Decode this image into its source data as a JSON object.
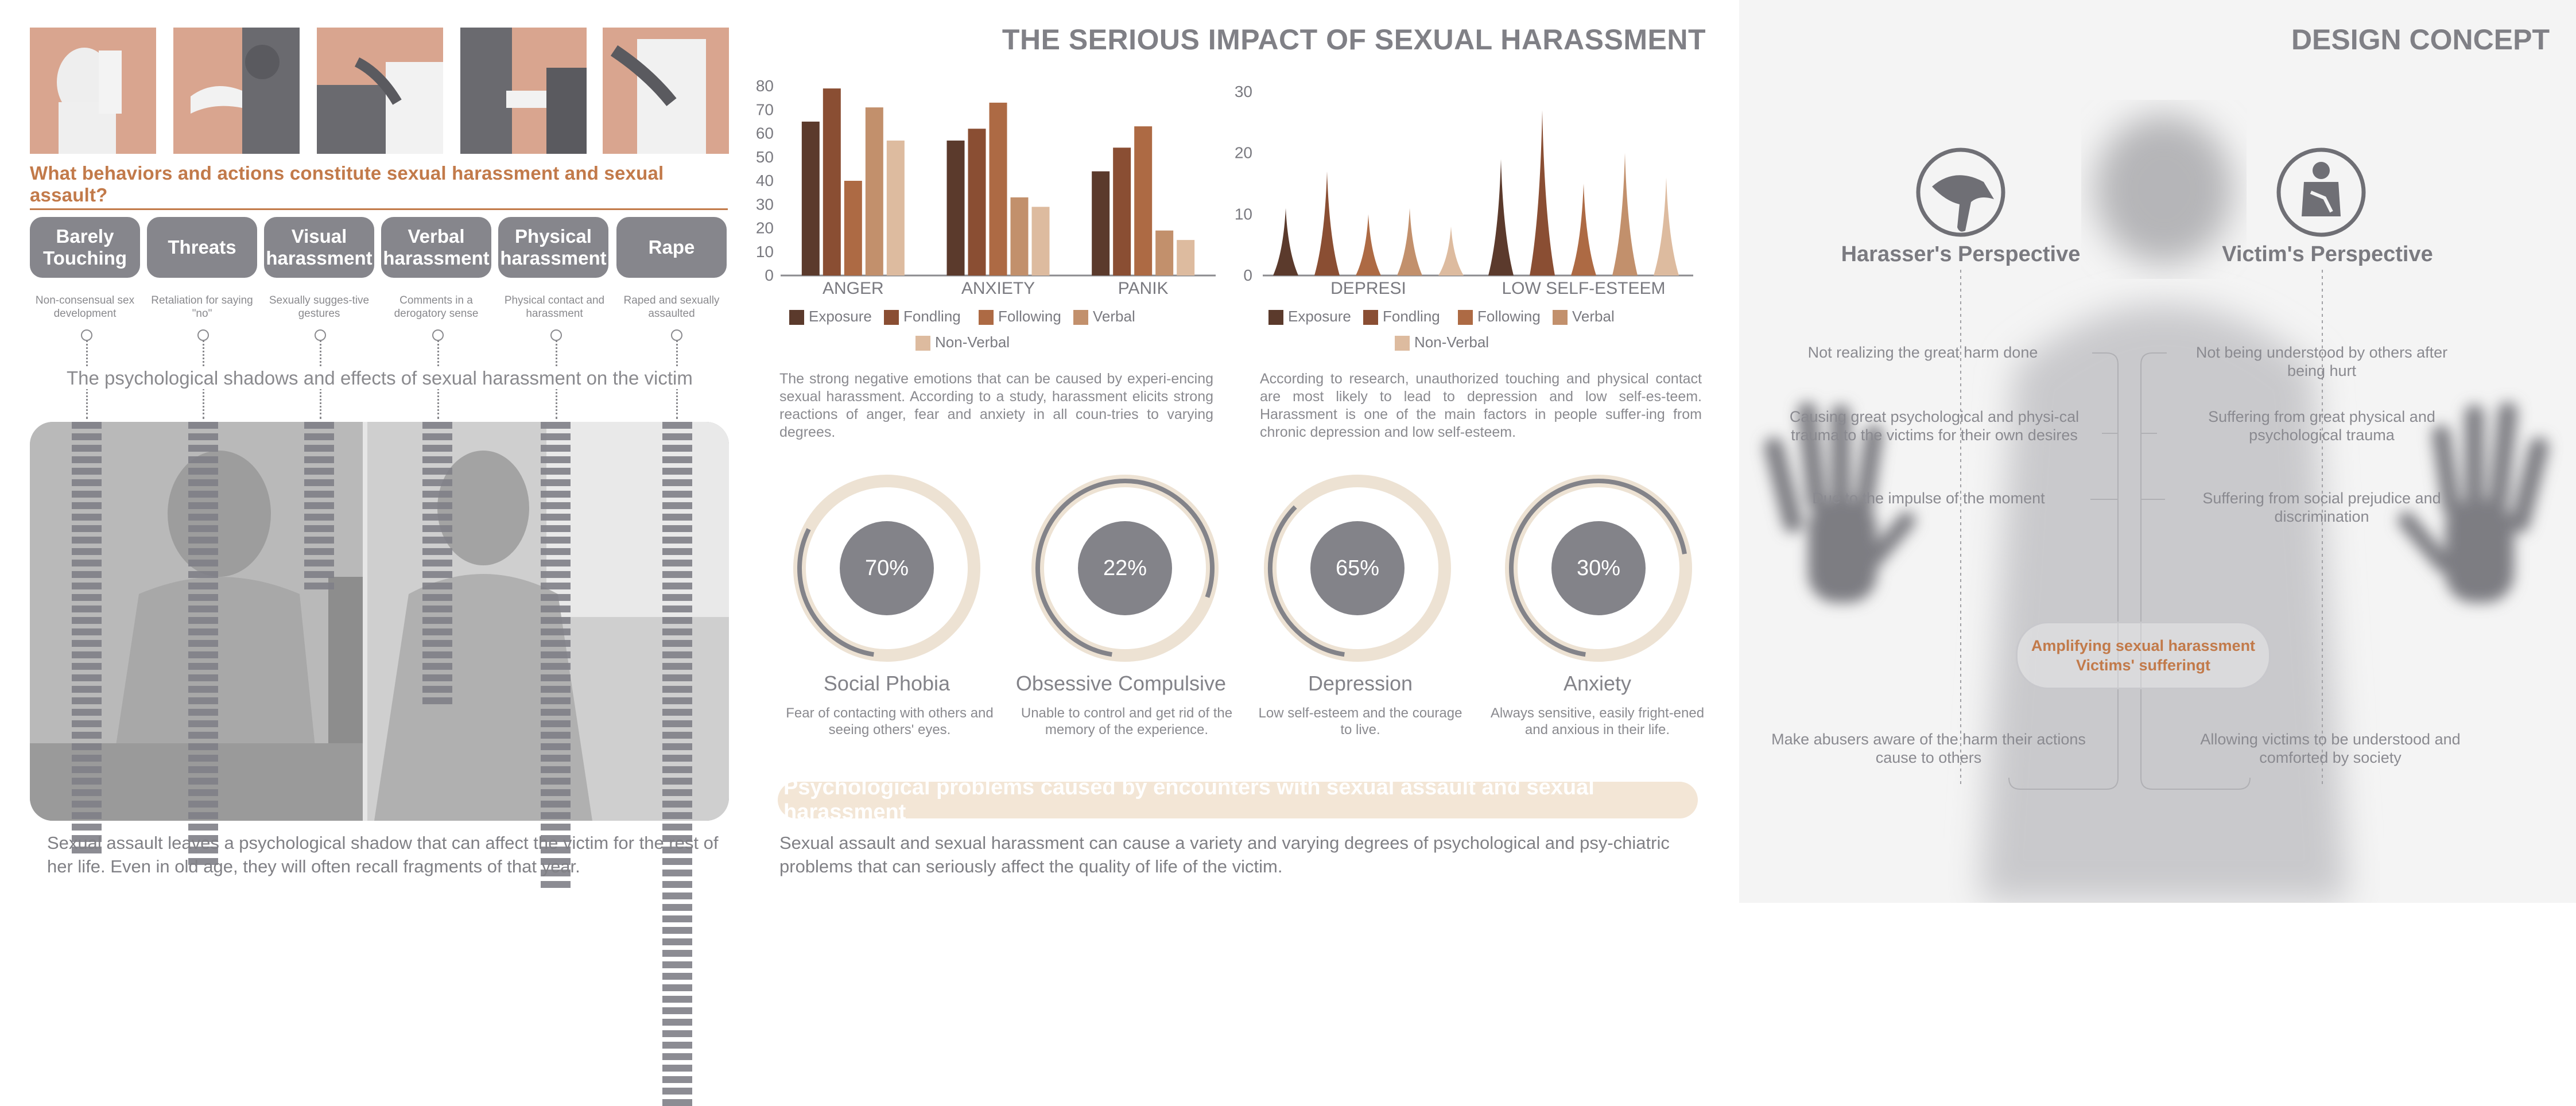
{
  "left": {
    "question": "What behaviors and actions constitute sexual harassment and sexual assault?",
    "categories": [
      {
        "label": "Barely Touching",
        "desc": "Non-consensual sex development"
      },
      {
        "label": "Threats",
        "desc": "Retaliation for saying \"no\""
      },
      {
        "label": "Visual harassment",
        "desc": "Sexually sugges-tive gestures"
      },
      {
        "label": "Verbal harassment",
        "desc": "Comments in a derogatory sense"
      },
      {
        "label": "Physical harassment",
        "desc": "Physical contact and harassment"
      },
      {
        "label": "Rape",
        "desc": "Raped and sexually assaulted"
      }
    ],
    "shadow_title": "The psychological shadows and effects of sexual harassment on the victim",
    "caption": "Sexual assault leaves a psychological shadow that can affect the victim for the rest of her life. Even in old age, they will often recall fragments of that year."
  },
  "middle": {
    "title": "THE SERIOUS IMPACT OF SEXUAL HARASSMENT",
    "para1": "The strong negative emotions that can be caused by experi-encing sexual harassment. According to a study, harassment elicits strong reactions of anger, fear and anxiety in all coun-tries to varying degrees.",
    "para2": "According to research, unauthorized touching and physical contact are most likely to lead to depression and low self-es-teem. Harassment is one of the main factors in people suffer-ing from chronic depression and low self-esteem.",
    "rings": [
      {
        "value": "70%",
        "label": "Social Phobia",
        "desc": "Fear of contacting with others and seeing others' eyes."
      },
      {
        "value": "22%",
        "label": "Obsessive Compulsive",
        "desc": "Unable to control and get rid of the memory of the experience."
      },
      {
        "value": "65%",
        "label": "Depression",
        "desc": "Low self-esteem and the courage to live."
      },
      {
        "value": "30%",
        "label": "Anxiety",
        "desc": "Always sensitive, easily fright-ened and anxious in their life."
      }
    ],
    "banner": "Psychological problems caused by encounters with sexual assault and sexual harassment",
    "caption": "Sexual assault and sexual harassment can cause a variety and varying degrees of psychological and psy-chiatric problems that can seriously affect the quality of life of the victim."
  },
  "colors": {
    "exposure": "#5b3a2c",
    "fondling": "#8a4e33",
    "following": "#ad6a44",
    "verbal": "#c2906c",
    "non_verbal": "#ddbb9f",
    "ring_track": "#ede2d3",
    "ring_line": "#838389"
  },
  "chart_data": [
    {
      "type": "bar",
      "categories": [
        "ANGER",
        "ANXIETY",
        "PANIK"
      ],
      "ylim": [
        0,
        80
      ],
      "yticks": [
        0,
        10,
        20,
        30,
        40,
        50,
        60,
        70,
        80
      ],
      "series": [
        {
          "name": "Exposure",
          "values": [
            65,
            57,
            44
          ]
        },
        {
          "name": "Fondling",
          "values": [
            79,
            62,
            54
          ]
        },
        {
          "name": "Following",
          "values": [
            40,
            73,
            63
          ]
        },
        {
          "name": "Verbal",
          "values": [
            71,
            33,
            19
          ]
        },
        {
          "name": "Non-Verbal",
          "values": [
            57,
            29,
            15
          ]
        }
      ]
    },
    {
      "type": "area",
      "categories": [
        "DEPRESI",
        "LOW SELF-ESTEEM"
      ],
      "ylim": [
        0,
        30
      ],
      "yticks": [
        0,
        10,
        20,
        30
      ],
      "series": [
        {
          "name": "Exposure",
          "values": [
            11,
            19
          ]
        },
        {
          "name": "Fondling",
          "values": [
            17,
            27
          ]
        },
        {
          "name": "Following",
          "values": [
            10,
            15
          ]
        },
        {
          "name": "Verbal",
          "values": [
            11,
            20
          ]
        },
        {
          "name": "Non-Verbal",
          "values": [
            8,
            16
          ]
        }
      ]
    }
  ],
  "right": {
    "title": "DESIGN CONCEPT",
    "harasser_label": "Harasser's Perspective",
    "victim_label": "Victim's Perspective",
    "harasser_items": [
      "Not realizing the great harm done",
      "Causing great psychological and physi-cal trauma to the victims for their own desires",
      "Due to the impulse of the moment",
      "Make abusers aware of the harm their actions cause to others"
    ],
    "victim_items": [
      "Not being understood by others after being hurt",
      "Suffering from great physical and psychological trauma",
      "Suffering from social prejudice and discrimination",
      "Allowing victims to be understood and comforted by society"
    ],
    "center": "Amplifying sexual harassment Victims' sufferingt"
  }
}
